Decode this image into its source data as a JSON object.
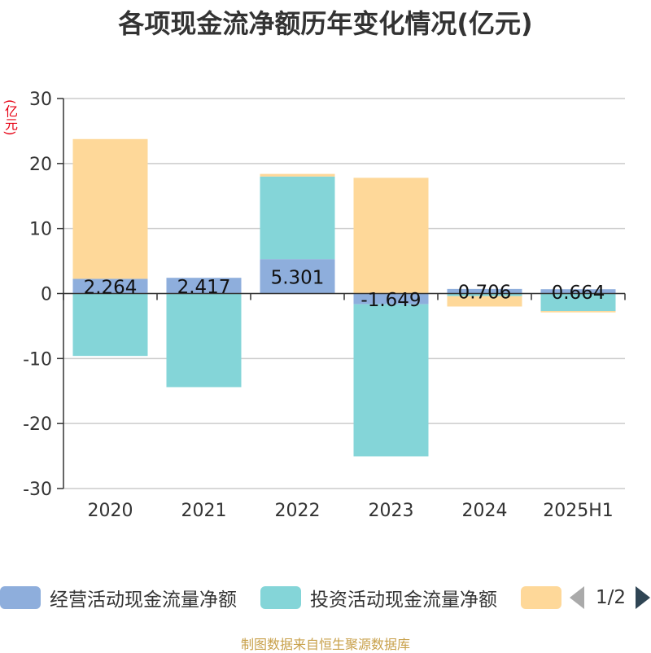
{
  "title": "各项现金流净额历年变化情况(亿元)",
  "unit_label": "(亿元)",
  "source": "制图数据来自恒生聚源数据库",
  "legend": {
    "items": [
      {
        "label": "经营活动现金流量净额",
        "color": "#8eaedc"
      },
      {
        "label": "投资活动现金流量净额",
        "color": "#84d5d8"
      },
      {
        "label": "",
        "color": "#fed899"
      }
    ],
    "pager": "1/2"
  },
  "chart_data": {
    "type": "bar",
    "stacked": true,
    "categories": [
      "2020",
      "2021",
      "2022",
      "2023",
      "2024",
      "2025H1"
    ],
    "series": [
      {
        "name": "经营活动现金流量净额",
        "color": "#8eaedc",
        "values": [
          2.264,
          2.417,
          5.301,
          -1.649,
          0.706,
          0.664
        ]
      },
      {
        "name": "投资活动现金流量净额",
        "color": "#84d5d8",
        "values": [
          -9.6,
          -14.4,
          12.7,
          -23.4,
          -0.4,
          -2.7
        ]
      },
      {
        "name": "",
        "color": "#fed899",
        "values": [
          21.5,
          0,
          0.4,
          17.8,
          -1.6,
          -0.2
        ]
      }
    ],
    "data_labels": [
      "2.264",
      "2.417",
      "5.301",
      "-1.649",
      "0.706",
      "0.664"
    ],
    "ylim": [
      -30,
      30
    ],
    "yticks": [
      30,
      20,
      10,
      0,
      -10,
      -20,
      -30
    ],
    "ytick_labels": [
      "30",
      "20",
      "10",
      "0",
      "-10",
      "-20",
      "-30"
    ],
    "grid": true,
    "legend_position": "bottom"
  }
}
